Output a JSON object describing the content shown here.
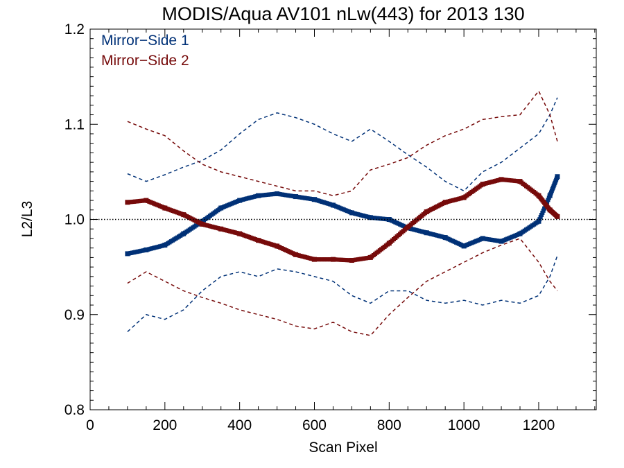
{
  "chart_data": {
    "type": "scatter",
    "title": "MODIS/Aqua AV101 nLw(443) for 2013 130",
    "xlabel": "Scan Pixel",
    "ylabel": "L2/L3",
    "xlim": [
      0,
      1354
    ],
    "ylim": [
      0.8,
      1.2
    ],
    "x_ticks": [
      0,
      200,
      400,
      600,
      800,
      1000,
      1200
    ],
    "x_tick_labels": [
      "0",
      "200",
      "400",
      "600",
      "800",
      "1000",
      "1200"
    ],
    "y_ticks": [
      0.8,
      0.9,
      1.0,
      1.1,
      1.2
    ],
    "y_tick_labels": [
      "0.8",
      "0.9",
      "1.0",
      "1.1",
      "1.2"
    ],
    "reference_line": 1.0,
    "legend_position": "top-left",
    "series": [
      {
        "name": "Mirror−Side 1",
        "color": "#003177",
        "mean": {
          "x": [
            100,
            150,
            200,
            250,
            300,
            350,
            400,
            450,
            500,
            550,
            600,
            650,
            700,
            750,
            800,
            850,
            900,
            950,
            1000,
            1050,
            1100,
            1150,
            1200,
            1230,
            1250
          ],
          "y": [
            0.964,
            0.968,
            0.973,
            0.985,
            0.998,
            1.012,
            1.02,
            1.025,
            1.027,
            1.024,
            1.021,
            1.015,
            1.007,
            1.002,
            1.0,
            0.991,
            0.986,
            0.981,
            0.972,
            0.98,
            0.977,
            0.985,
            0.998,
            1.025,
            1.045
          ]
        },
        "upper": {
          "x": [
            100,
            150,
            200,
            250,
            300,
            350,
            400,
            450,
            500,
            550,
            600,
            650,
            700,
            750,
            800,
            850,
            900,
            950,
            1000,
            1050,
            1100,
            1150,
            1200,
            1230,
            1250
          ],
          "y": [
            1.048,
            1.04,
            1.047,
            1.055,
            1.062,
            1.073,
            1.09,
            1.105,
            1.112,
            1.107,
            1.1,
            1.09,
            1.082,
            1.095,
            1.082,
            1.068,
            1.055,
            1.04,
            1.03,
            1.05,
            1.06,
            1.075,
            1.09,
            1.11,
            1.128
          ]
        },
        "lower": {
          "x": [
            100,
            150,
            200,
            250,
            300,
            350,
            400,
            450,
            500,
            550,
            600,
            650,
            700,
            750,
            800,
            850,
            900,
            950,
            1000,
            1050,
            1100,
            1150,
            1200,
            1230,
            1250
          ],
          "y": [
            0.882,
            0.9,
            0.895,
            0.905,
            0.925,
            0.94,
            0.945,
            0.94,
            0.948,
            0.945,
            0.94,
            0.935,
            0.92,
            0.912,
            0.925,
            0.925,
            0.915,
            0.912,
            0.915,
            0.91,
            0.915,
            0.912,
            0.92,
            0.94,
            0.962
          ]
        }
      },
      {
        "name": "Mirror−Side 2",
        "color": "#760a0a",
        "mean": {
          "x": [
            100,
            150,
            200,
            250,
            300,
            350,
            400,
            450,
            500,
            550,
            600,
            650,
            700,
            750,
            800,
            850,
            900,
            950,
            1000,
            1050,
            1100,
            1150,
            1200,
            1230,
            1250
          ],
          "y": [
            1.018,
            1.02,
            1.012,
            1.005,
            0.995,
            0.99,
            0.985,
            0.978,
            0.972,
            0.963,
            0.958,
            0.958,
            0.957,
            0.96,
            0.975,
            0.992,
            1.008,
            1.018,
            1.023,
            1.037,
            1.042,
            1.04,
            1.025,
            1.01,
            1.003
          ]
        },
        "upper": {
          "x": [
            100,
            150,
            200,
            250,
            300,
            350,
            400,
            450,
            500,
            550,
            600,
            650,
            700,
            750,
            800,
            850,
            900,
            950,
            1000,
            1050,
            1100,
            1150,
            1200,
            1230,
            1250
          ],
          "y": [
            1.103,
            1.095,
            1.088,
            1.072,
            1.058,
            1.05,
            1.045,
            1.04,
            1.035,
            1.03,
            1.03,
            1.025,
            1.03,
            1.052,
            1.058,
            1.065,
            1.078,
            1.088,
            1.095,
            1.105,
            1.108,
            1.11,
            1.135,
            1.11,
            1.082
          ]
        },
        "lower": {
          "x": [
            100,
            150,
            200,
            250,
            300,
            350,
            400,
            450,
            500,
            550,
            600,
            650,
            700,
            750,
            800,
            850,
            900,
            950,
            1000,
            1050,
            1100,
            1150,
            1200,
            1230,
            1250
          ],
          "y": [
            0.933,
            0.945,
            0.935,
            0.925,
            0.918,
            0.912,
            0.905,
            0.9,
            0.895,
            0.888,
            0.885,
            0.892,
            0.882,
            0.878,
            0.9,
            0.918,
            0.935,
            0.945,
            0.955,
            0.965,
            0.973,
            0.98,
            0.955,
            0.935,
            0.925
          ]
        }
      }
    ]
  }
}
